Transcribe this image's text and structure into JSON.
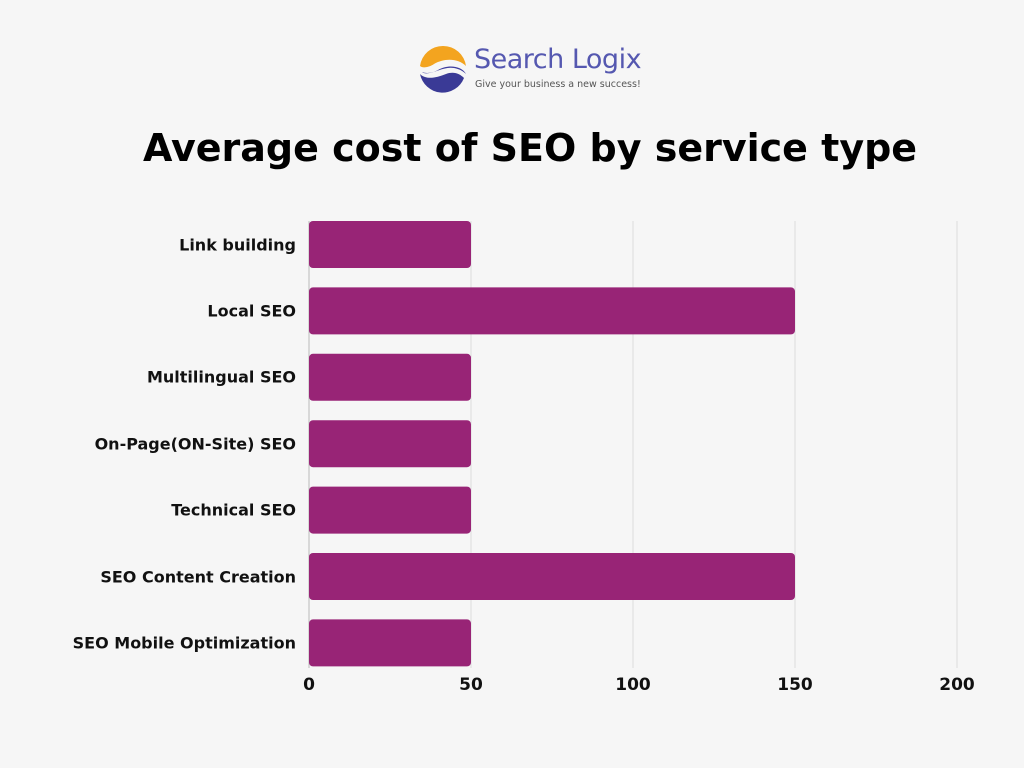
{
  "logo": {
    "name": "Search Logix",
    "tagline": "Give your business a new success!"
  },
  "chart_data": {
    "type": "bar",
    "orientation": "horizontal",
    "title": "Average cost of SEO by service type",
    "categories": [
      "Link building",
      "Local SEO",
      "Multilingual SEO",
      "On-Page(ON-Site) SEO",
      "Technical SEO",
      "SEO Content Creation",
      "SEO Mobile Optimization"
    ],
    "values": [
      50,
      150,
      50,
      50,
      50,
      150,
      50
    ],
    "xlim": [
      0,
      200
    ],
    "xticks": [
      "0",
      "50",
      "100",
      "150",
      "200"
    ],
    "xlabel": "",
    "ylabel": "",
    "grid": true,
    "bar_color": "#982476"
  }
}
